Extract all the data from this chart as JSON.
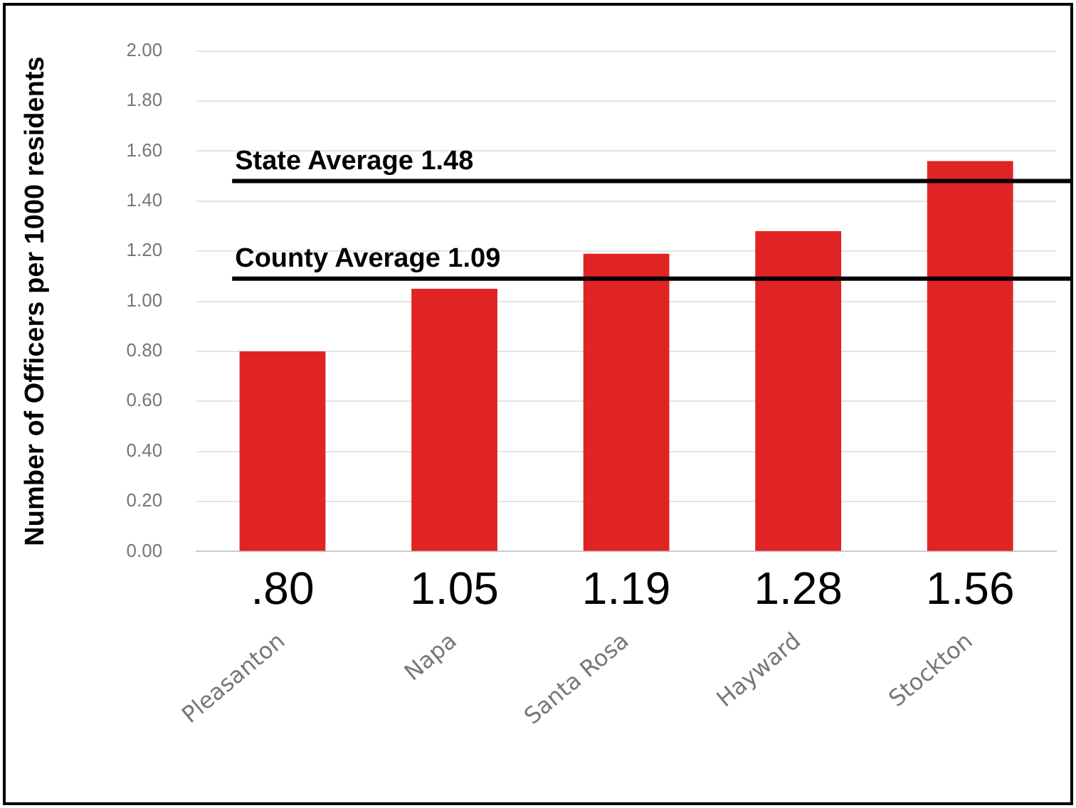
{
  "chart_data": {
    "type": "bar",
    "ylabel": "Number of Officers per 1000 residents",
    "categories": [
      "Pleasanton",
      "Napa",
      "Santa Rosa",
      "Hayward",
      "Stockton"
    ],
    "values": [
      0.8,
      1.05,
      1.19,
      1.28,
      1.56
    ],
    "color": "#e02424",
    "value_labels": [
      ".80",
      "1.05",
      "1.19",
      "1.28",
      "1.56"
    ],
    "ylim": [
      0,
      2
    ],
    "yticks": [
      {
        "value": 0,
        "label": "0.00"
      },
      {
        "value": 0.2,
        "label": "0.20"
      },
      {
        "value": 0.4,
        "label": "0.40"
      },
      {
        "value": 0.6,
        "label": "0.60"
      },
      {
        "value": 0.8,
        "label": "0.80"
      },
      {
        "value": 1,
        "label": "1.00"
      },
      {
        "value": 1.2,
        "label": "1.20"
      },
      {
        "value": 1.4,
        "label": "1.40"
      },
      {
        "value": 1.6,
        "label": "1.60"
      },
      {
        "value": 1.8,
        "label": "1.80"
      },
      {
        "value": 2,
        "label": "2.00"
      }
    ],
    "ref_lines": [
      {
        "axis": "y",
        "value": 1.48,
        "label": "State Average 1.48",
        "color": "#000000"
      },
      {
        "axis": "y",
        "value": 1.09,
        "label": "County Average 1.09",
        "color": "#000000"
      }
    ],
    "grid": "y",
    "legend": false
  }
}
